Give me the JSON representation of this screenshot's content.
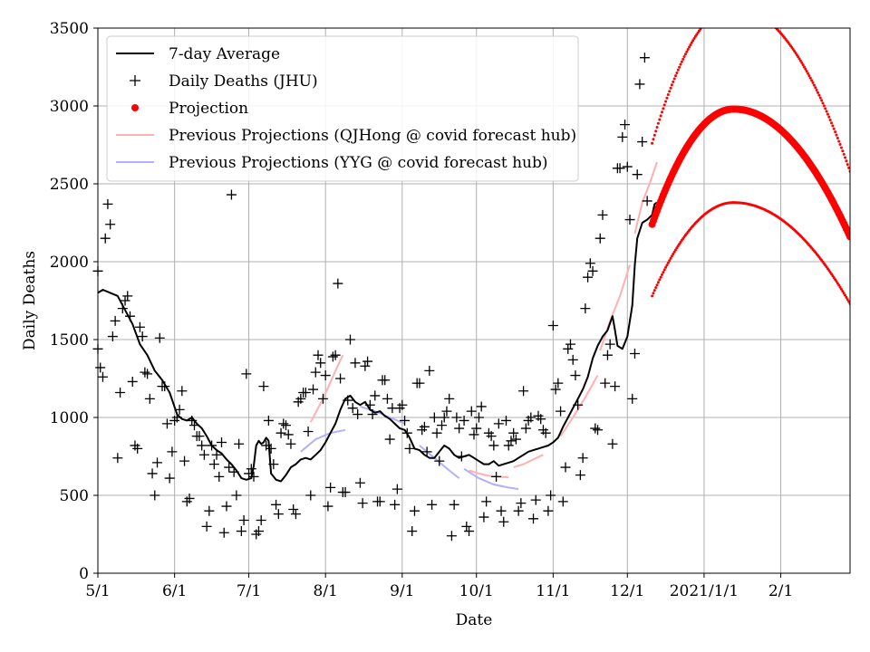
{
  "chart_data": {
    "type": "line",
    "xlabel": "Date",
    "ylabel": "Daily Deaths",
    "x_range_days": [
      0,
      304
    ],
    "x_ticks": [
      {
        "day": 0,
        "label": "5/1"
      },
      {
        "day": 31,
        "label": "6/1"
      },
      {
        "day": 61,
        "label": "7/1"
      },
      {
        "day": 92,
        "label": "8/1"
      },
      {
        "day": 123,
        "label": "9/1"
      },
      {
        "day": 153,
        "label": "10/1"
      },
      {
        "day": 184,
        "label": "11/1"
      },
      {
        "day": 214,
        "label": "12/1"
      },
      {
        "day": 245,
        "label": "2021/1/1"
      },
      {
        "day": 276,
        "label": "2/1"
      }
    ],
    "ylim": [
      0,
      3500
    ],
    "y_ticks": [
      0,
      500,
      1000,
      1500,
      2000,
      2500,
      3000,
      3500
    ],
    "grid": true,
    "legend_position": "top-left",
    "legend": [
      {
        "label": "7-day Average",
        "marker": "line",
        "color": "#000000"
      },
      {
        "label": "Daily Deaths (JHU)",
        "marker": "plus",
        "color": "#000000"
      },
      {
        "label": "Projection",
        "marker": "dot",
        "color": "#ff0000"
      },
      {
        "label": "Previous Projections (QJHong @ covid forecast hub)",
        "marker": "line",
        "color": "#ffb0b0"
      },
      {
        "label": "Previous Projections (YYG @ covid forecast hub)",
        "marker": "line",
        "color": "#b0b0ff"
      }
    ],
    "seven_day_average": [
      [
        0,
        1800
      ],
      [
        2,
        1820
      ],
      [
        5,
        1800
      ],
      [
        8,
        1780
      ],
      [
        11,
        1690
      ],
      [
        14,
        1600
      ],
      [
        17,
        1470
      ],
      [
        20,
        1400
      ],
      [
        23,
        1300
      ],
      [
        26,
        1240
      ],
      [
        29,
        1160
      ],
      [
        32,
        1020
      ],
      [
        34,
        990
      ],
      [
        36,
        980
      ],
      [
        38,
        1000
      ],
      [
        40,
        960
      ],
      [
        42,
        930
      ],
      [
        44,
        880
      ],
      [
        46,
        820
      ],
      [
        48,
        790
      ],
      [
        50,
        770
      ],
      [
        52,
        730
      ],
      [
        54,
        700
      ],
      [
        56,
        660
      ],
      [
        58,
        610
      ],
      [
        60,
        600
      ],
      [
        62,
        610
      ],
      [
        63,
        690
      ],
      [
        64,
        820
      ],
      [
        65,
        850
      ],
      [
        66,
        830
      ],
      [
        67,
        840
      ],
      [
        68,
        870
      ],
      [
        69,
        850
      ],
      [
        70,
        640
      ],
      [
        72,
        600
      ],
      [
        74,
        590
      ],
      [
        76,
        630
      ],
      [
        78,
        680
      ],
      [
        80,
        700
      ],
      [
        82,
        730
      ],
      [
        84,
        740
      ],
      [
        86,
        730
      ],
      [
        88,
        760
      ],
      [
        90,
        790
      ],
      [
        92,
        840
      ],
      [
        94,
        900
      ],
      [
        96,
        960
      ],
      [
        98,
        1050
      ],
      [
        100,
        1120
      ],
      [
        102,
        1140
      ],
      [
        104,
        1100
      ],
      [
        106,
        1080
      ],
      [
        108,
        1100
      ],
      [
        110,
        1050
      ],
      [
        112,
        1030
      ],
      [
        114,
        1040
      ],
      [
        116,
        1010
      ],
      [
        118,
        990
      ],
      [
        120,
        960
      ],
      [
        122,
        930
      ],
      [
        124,
        920
      ],
      [
        126,
        870
      ],
      [
        128,
        800
      ],
      [
        130,
        790
      ],
      [
        132,
        760
      ],
      [
        134,
        740
      ],
      [
        136,
        740
      ],
      [
        138,
        780
      ],
      [
        140,
        820
      ],
      [
        142,
        800
      ],
      [
        144,
        760
      ],
      [
        146,
        740
      ],
      [
        148,
        750
      ],
      [
        150,
        760
      ],
      [
        152,
        740
      ],
      [
        154,
        720
      ],
      [
        156,
        700
      ],
      [
        158,
        700
      ],
      [
        160,
        720
      ],
      [
        162,
        690
      ],
      [
        164,
        700
      ],
      [
        166,
        710
      ],
      [
        168,
        720
      ],
      [
        170,
        740
      ],
      [
        172,
        760
      ],
      [
        174,
        780
      ],
      [
        176,
        790
      ],
      [
        178,
        800
      ],
      [
        180,
        810
      ],
      [
        182,
        820
      ],
      [
        184,
        840
      ],
      [
        186,
        870
      ],
      [
        188,
        940
      ],
      [
        190,
        1000
      ],
      [
        192,
        1060
      ],
      [
        194,
        1120
      ],
      [
        196,
        1180
      ],
      [
        198,
        1260
      ],
      [
        200,
        1380
      ],
      [
        202,
        1460
      ],
      [
        204,
        1520
      ],
      [
        206,
        1560
      ],
      [
        208,
        1650
      ],
      [
        209,
        1560
      ],
      [
        210,
        1460
      ],
      [
        212,
        1440
      ],
      [
        214,
        1520
      ],
      [
        216,
        1720
      ],
      [
        217,
        1980
      ],
      [
        218,
        2150
      ],
      [
        220,
        2250
      ],
      [
        222,
        2270
      ],
      [
        224,
        2300
      ],
      [
        225,
        2370
      ],
      [
        226,
        2380
      ]
    ],
    "daily_deaths": [
      [
        0,
        1940
      ],
      [
        0,
        1440
      ],
      [
        1,
        1320
      ],
      [
        2,
        1260
      ],
      [
        3,
        2150
      ],
      [
        4,
        2370
      ],
      [
        5,
        2240
      ],
      [
        6,
        1520
      ],
      [
        7,
        1620
      ],
      [
        8,
        740
      ],
      [
        9,
        1160
      ],
      [
        10,
        1700
      ],
      [
        11,
        1750
      ],
      [
        12,
        1780
      ],
      [
        13,
        1650
      ],
      [
        14,
        1230
      ],
      [
        15,
        820
      ],
      [
        16,
        800
      ],
      [
        17,
        1580
      ],
      [
        18,
        1520
      ],
      [
        19,
        1290
      ],
      [
        20,
        1280
      ],
      [
        21,
        1120
      ],
      [
        22,
        640
      ],
      [
        23,
        500
      ],
      [
        24,
        710
      ],
      [
        25,
        1510
      ],
      [
        26,
        1200
      ],
      [
        27,
        1200
      ],
      [
        28,
        960
      ],
      [
        29,
        610
      ],
      [
        30,
        780
      ],
      [
        31,
        980
      ],
      [
        32,
        1000
      ],
      [
        33,
        1050
      ],
      [
        34,
        1170
      ],
      [
        35,
        720
      ],
      [
        36,
        460
      ],
      [
        37,
        480
      ],
      [
        38,
        980
      ],
      [
        39,
        950
      ],
      [
        40,
        880
      ],
      [
        41,
        880
      ],
      [
        42,
        820
      ],
      [
        43,
        760
      ],
      [
        44,
        300
      ],
      [
        45,
        400
      ],
      [
        46,
        820
      ],
      [
        47,
        700
      ],
      [
        48,
        760
      ],
      [
        49,
        620
      ],
      [
        50,
        840
      ],
      [
        51,
        260
      ],
      [
        52,
        430
      ],
      [
        53,
        680
      ],
      [
        54,
        2430
      ],
      [
        55,
        650
      ],
      [
        56,
        500
      ],
      [
        57,
        830
      ],
      [
        58,
        270
      ],
      [
        59,
        340
      ],
      [
        60,
        1280
      ],
      [
        61,
        640
      ],
      [
        62,
        670
      ],
      [
        63,
        620
      ],
      [
        64,
        250
      ],
      [
        65,
        270
      ],
      [
        66,
        340
      ],
      [
        67,
        1200
      ],
      [
        68,
        820
      ],
      [
        69,
        980
      ],
      [
        70,
        800
      ],
      [
        71,
        700
      ],
      [
        72,
        440
      ],
      [
        73,
        380
      ],
      [
        74,
        900
      ],
      [
        75,
        960
      ],
      [
        76,
        950
      ],
      [
        77,
        890
      ],
      [
        78,
        830
      ],
      [
        79,
        410
      ],
      [
        80,
        380
      ],
      [
        81,
        1100
      ],
      [
        82,
        1120
      ],
      [
        83,
        1160
      ],
      [
        84,
        1160
      ],
      [
        85,
        910
      ],
      [
        86,
        500
      ],
      [
        87,
        1180
      ],
      [
        88,
        1290
      ],
      [
        89,
        1400
      ],
      [
        90,
        1350
      ],
      [
        91,
        1120
      ],
      [
        92,
        1270
      ],
      [
        93,
        430
      ],
      [
        94,
        550
      ],
      [
        95,
        1390
      ],
      [
        96,
        1400
      ],
      [
        97,
        1860
      ],
      [
        98,
        1250
      ],
      [
        99,
        520
      ],
      [
        100,
        520
      ],
      [
        101,
        1110
      ],
      [
        102,
        1500
      ],
      [
        103,
        1060
      ],
      [
        104,
        1350
      ],
      [
        105,
        1020
      ],
      [
        106,
        580
      ],
      [
        107,
        450
      ],
      [
        108,
        1330
      ],
      [
        109,
        1360
      ],
      [
        110,
        1080
      ],
      [
        111,
        1020
      ],
      [
        112,
        1140
      ],
      [
        113,
        460
      ],
      [
        114,
        460
      ],
      [
        115,
        1240
      ],
      [
        116,
        1240
      ],
      [
        117,
        1120
      ],
      [
        118,
        860
      ],
      [
        119,
        1060
      ],
      [
        120,
        440
      ],
      [
        121,
        540
      ],
      [
        122,
        1060
      ],
      [
        123,
        1080
      ],
      [
        124,
        980
      ],
      [
        125,
        900
      ],
      [
        126,
        800
      ],
      [
        127,
        270
      ],
      [
        128,
        400
      ],
      [
        129,
        1220
      ],
      [
        130,
        1220
      ],
      [
        131,
        920
      ],
      [
        132,
        940
      ],
      [
        133,
        780
      ],
      [
        134,
        1300
      ],
      [
        135,
        440
      ],
      [
        136,
        1000
      ],
      [
        137,
        900
      ],
      [
        138,
        720
      ],
      [
        139,
        950
      ],
      [
        140,
        1000
      ],
      [
        141,
        1040
      ],
      [
        142,
        1120
      ],
      [
        143,
        240
      ],
      [
        144,
        440
      ],
      [
        145,
        1000
      ],
      [
        146,
        930
      ],
      [
        147,
        750
      ],
      [
        148,
        980
      ],
      [
        149,
        300
      ],
      [
        150,
        270
      ],
      [
        151,
        1040
      ],
      [
        152,
        890
      ],
      [
        153,
        930
      ],
      [
        154,
        1000
      ],
      [
        155,
        1070
      ],
      [
        156,
        360
      ],
      [
        157,
        460
      ],
      [
        158,
        900
      ],
      [
        159,
        880
      ],
      [
        160,
        820
      ],
      [
        161,
        620
      ],
      [
        162,
        960
      ],
      [
        163,
        400
      ],
      [
        164,
        330
      ],
      [
        165,
        980
      ],
      [
        166,
        820
      ],
      [
        167,
        850
      ],
      [
        168,
        900
      ],
      [
        169,
        860
      ],
      [
        170,
        400
      ],
      [
        171,
        450
      ],
      [
        172,
        1170
      ],
      [
        173,
        930
      ],
      [
        174,
        980
      ],
      [
        175,
        1000
      ],
      [
        176,
        350
      ],
      [
        177,
        470
      ],
      [
        178,
        1010
      ],
      [
        179,
        990
      ],
      [
        180,
        920
      ],
      [
        181,
        900
      ],
      [
        182,
        400
      ],
      [
        183,
        500
      ],
      [
        184,
        1590
      ],
      [
        185,
        1180
      ],
      [
        186,
        1220
      ],
      [
        187,
        1040
      ],
      [
        188,
        460
      ],
      [
        189,
        680
      ],
      [
        190,
        1440
      ],
      [
        191,
        1470
      ],
      [
        192,
        1370
      ],
      [
        193,
        1270
      ],
      [
        194,
        1080
      ],
      [
        195,
        630
      ],
      [
        196,
        740
      ],
      [
        197,
        1700
      ],
      [
        198,
        1900
      ],
      [
        199,
        1990
      ],
      [
        200,
        1940
      ],
      [
        201,
        930
      ],
      [
        202,
        920
      ],
      [
        203,
        2150
      ],
      [
        204,
        2300
      ],
      [
        205,
        1220
      ],
      [
        206,
        1400
      ],
      [
        207,
        1470
      ],
      [
        208,
        830
      ],
      [
        209,
        1200
      ],
      [
        210,
        2600
      ],
      [
        211,
        2600
      ],
      [
        212,
        2800
      ],
      [
        213,
        2880
      ],
      [
        214,
        2610
      ],
      [
        215,
        2270
      ],
      [
        216,
        1120
      ],
      [
        217,
        1410
      ],
      [
        218,
        2560
      ],
      [
        219,
        3140
      ],
      [
        220,
        2770
      ],
      [
        221,
        3310
      ],
      [
        222,
        2390
      ]
    ],
    "projection": {
      "start_day": 224,
      "end_day": 304,
      "peak_day": 257,
      "central": {
        "start": 2240,
        "peak": 2980,
        "end": 2160
      },
      "upper": {
        "start": 2760,
        "peak": 3640,
        "end": 2580
      },
      "lower": {
        "start": 1780,
        "peak": 2380,
        "end": 1730
      }
    },
    "previous_projections_qjhong": [
      [
        [
          86,
          970
        ],
        [
          90,
          1090
        ],
        [
          93,
          1190
        ],
        [
          96,
          1300
        ],
        [
          99,
          1400
        ]
      ],
      [
        [
          150,
          660
        ],
        [
          154,
          640
        ],
        [
          158,
          625
        ],
        [
          162,
          620
        ],
        [
          166,
          615
        ]
      ],
      [
        [
          168,
          680
        ],
        [
          172,
          700
        ],
        [
          176,
          730
        ],
        [
          180,
          760
        ]
      ],
      [
        [
          187,
          880
        ],
        [
          192,
          1000
        ],
        [
          197,
          1130
        ],
        [
          202,
          1270
        ]
      ],
      [
        [
          203,
          1430
        ],
        [
          207,
          1620
        ],
        [
          211,
          1780
        ],
        [
          215,
          1980
        ]
      ],
      [
        [
          217,
          2180
        ],
        [
          220,
          2380
        ],
        [
          223,
          2500
        ],
        [
          226,
          2640
        ]
      ]
    ],
    "previous_projections_yyg": [
      [
        [
          82,
          780
        ],
        [
          88,
          860
        ],
        [
          94,
          900
        ],
        [
          100,
          920
        ]
      ],
      [
        [
          106,
          1070
        ],
        [
          112,
          1040
        ],
        [
          118,
          1000
        ],
        [
          124,
          960
        ]
      ],
      [
        [
          130,
          820
        ],
        [
          136,
          740
        ],
        [
          142,
          660
        ],
        [
          146,
          610
        ]
      ],
      [
        [
          148,
          670
        ],
        [
          154,
          610
        ],
        [
          160,
          570
        ],
        [
          166,
          550
        ],
        [
          170,
          540
        ]
      ]
    ]
  }
}
